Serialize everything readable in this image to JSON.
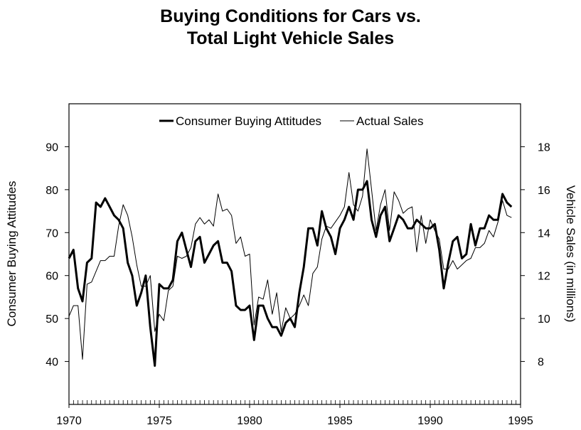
{
  "chart_data": {
    "type": "line",
    "title_line1": "Buying Conditions for Cars vs.",
    "title_line2": "Total Light Vehicle Sales",
    "xlabel": "",
    "ylabel_left": "Consumer Buying Attitudes",
    "ylabel_right": "Vehicle Sales (in millions)",
    "xlim": [
      1970,
      1995
    ],
    "ylim_left": [
      30,
      100
    ],
    "ylim_right": [
      6,
      20
    ],
    "x_ticks": [
      1970,
      1975,
      1980,
      1985,
      1990,
      1995
    ],
    "y_ticks_left": [
      40,
      50,
      60,
      70,
      80,
      90
    ],
    "y_ticks_right": [
      8,
      10,
      12,
      14,
      16,
      18
    ],
    "legend_position": "top-center",
    "grid": false,
    "series": [
      {
        "name": "Consumer Buying Attitudes",
        "axis": "left",
        "style": "thick",
        "points": [
          [
            1970.0,
            64
          ],
          [
            1970.25,
            66
          ],
          [
            1970.5,
            57
          ],
          [
            1970.75,
            54
          ],
          [
            1971.0,
            63
          ],
          [
            1971.25,
            64
          ],
          [
            1971.5,
            77
          ],
          [
            1971.75,
            76
          ],
          [
            1972.0,
            78
          ],
          [
            1972.25,
            76
          ],
          [
            1972.5,
            74
          ],
          [
            1972.75,
            73
          ],
          [
            1973.0,
            71
          ],
          [
            1973.25,
            63
          ],
          [
            1973.5,
            60
          ],
          [
            1973.75,
            53
          ],
          [
            1974.0,
            56
          ],
          [
            1974.25,
            60
          ],
          [
            1974.5,
            48
          ],
          [
            1974.75,
            39
          ],
          [
            1975.0,
            58
          ],
          [
            1975.25,
            57
          ],
          [
            1975.5,
            57
          ],
          [
            1975.75,
            59
          ],
          [
            1976.0,
            68
          ],
          [
            1976.25,
            70
          ],
          [
            1976.5,
            66
          ],
          [
            1976.75,
            62
          ],
          [
            1977.0,
            68
          ],
          [
            1977.25,
            69
          ],
          [
            1977.5,
            63
          ],
          [
            1977.75,
            65
          ],
          [
            1978.0,
            67
          ],
          [
            1978.25,
            68
          ],
          [
            1978.5,
            63
          ],
          [
            1978.75,
            63
          ],
          [
            1979.0,
            61
          ],
          [
            1979.25,
            53
          ],
          [
            1979.5,
            52
          ],
          [
            1979.75,
            52
          ],
          [
            1980.0,
            53
          ],
          [
            1980.25,
            45
          ],
          [
            1980.5,
            53
          ],
          [
            1980.75,
            53
          ],
          [
            1981.0,
            50
          ],
          [
            1981.25,
            48
          ],
          [
            1981.5,
            48
          ],
          [
            1981.75,
            46
          ],
          [
            1982.0,
            49
          ],
          [
            1982.25,
            50
          ],
          [
            1982.5,
            48
          ],
          [
            1982.75,
            56
          ],
          [
            1983.0,
            62
          ],
          [
            1983.25,
            71
          ],
          [
            1983.5,
            71
          ],
          [
            1983.75,
            67
          ],
          [
            1984.0,
            75
          ],
          [
            1984.25,
            71
          ],
          [
            1984.5,
            69
          ],
          [
            1984.75,
            65
          ],
          [
            1985.0,
            71
          ],
          [
            1985.25,
            73
          ],
          [
            1985.5,
            76
          ],
          [
            1985.75,
            73
          ],
          [
            1986.0,
            80
          ],
          [
            1986.25,
            80
          ],
          [
            1986.5,
            82
          ],
          [
            1986.75,
            73
          ],
          [
            1987.0,
            69
          ],
          [
            1987.25,
            74
          ],
          [
            1987.5,
            76
          ],
          [
            1987.75,
            68
          ],
          [
            1988.0,
            71
          ],
          [
            1988.25,
            74
          ],
          [
            1988.5,
            73
          ],
          [
            1988.75,
            71
          ],
          [
            1989.0,
            71
          ],
          [
            1989.25,
            73
          ],
          [
            1989.5,
            72
          ],
          [
            1989.75,
            71
          ],
          [
            1990.0,
            71
          ],
          [
            1990.25,
            72
          ],
          [
            1990.5,
            66
          ],
          [
            1990.75,
            57
          ],
          [
            1991.0,
            63
          ],
          [
            1991.25,
            68
          ],
          [
            1991.5,
            69
          ],
          [
            1991.75,
            64
          ],
          [
            1992.0,
            65
          ],
          [
            1992.25,
            72
          ],
          [
            1992.5,
            67
          ],
          [
            1992.75,
            71
          ],
          [
            1993.0,
            71
          ],
          [
            1993.25,
            74
          ],
          [
            1993.5,
            73
          ],
          [
            1993.75,
            73
          ],
          [
            1994.0,
            79
          ],
          [
            1994.25,
            77
          ],
          [
            1994.5,
            76
          ]
        ]
      },
      {
        "name": "Actual Sales",
        "axis": "right",
        "style": "thin",
        "points": [
          [
            1970.0,
            10.1
          ],
          [
            1970.25,
            10.6
          ],
          [
            1970.5,
            10.6
          ],
          [
            1970.75,
            8.1
          ],
          [
            1971.0,
            11.6
          ],
          [
            1971.25,
            11.7
          ],
          [
            1971.5,
            12.2
          ],
          [
            1971.75,
            12.7
          ],
          [
            1972.0,
            12.7
          ],
          [
            1972.25,
            12.9
          ],
          [
            1972.5,
            12.9
          ],
          [
            1972.75,
            14.3
          ],
          [
            1973.0,
            15.3
          ],
          [
            1973.25,
            14.8
          ],
          [
            1973.5,
            13.8
          ],
          [
            1973.75,
            12.5
          ],
          [
            1974.0,
            11.5
          ],
          [
            1974.25,
            11.5
          ],
          [
            1974.5,
            12.0
          ],
          [
            1974.75,
            9.4
          ],
          [
            1975.0,
            10.2
          ],
          [
            1975.25,
            9.9
          ],
          [
            1975.5,
            11.3
          ],
          [
            1975.75,
            11.5
          ],
          [
            1976.0,
            12.9
          ],
          [
            1976.25,
            12.8
          ],
          [
            1976.5,
            12.9
          ],
          [
            1976.75,
            13.3
          ],
          [
            1977.0,
            14.4
          ],
          [
            1977.25,
            14.7
          ],
          [
            1977.5,
            14.4
          ],
          [
            1977.75,
            14.6
          ],
          [
            1978.0,
            14.3
          ],
          [
            1978.25,
            15.8
          ],
          [
            1978.5,
            15.0
          ],
          [
            1978.75,
            15.1
          ],
          [
            1979.0,
            14.8
          ],
          [
            1979.25,
            13.5
          ],
          [
            1979.5,
            13.8
          ],
          [
            1979.75,
            12.9
          ],
          [
            1980.0,
            13.0
          ],
          [
            1980.25,
            9.7
          ],
          [
            1980.5,
            11.0
          ],
          [
            1980.75,
            10.9
          ],
          [
            1981.0,
            11.8
          ],
          [
            1981.25,
            10.2
          ],
          [
            1981.5,
            11.2
          ],
          [
            1981.75,
            9.4
          ],
          [
            1982.0,
            10.5
          ],
          [
            1982.25,
            10.0
          ],
          [
            1982.5,
            10.2
          ],
          [
            1982.75,
            10.6
          ],
          [
            1983.0,
            11.1
          ],
          [
            1983.25,
            10.6
          ],
          [
            1983.5,
            12.1
          ],
          [
            1983.75,
            12.4
          ],
          [
            1984.0,
            13.7
          ],
          [
            1984.25,
            14.3
          ],
          [
            1984.5,
            14.2
          ],
          [
            1984.75,
            14.5
          ],
          [
            1985.0,
            14.8
          ],
          [
            1985.25,
            15.2
          ],
          [
            1985.5,
            16.8
          ],
          [
            1985.75,
            15.3
          ],
          [
            1986.0,
            15.0
          ],
          [
            1986.25,
            15.7
          ],
          [
            1986.5,
            17.9
          ],
          [
            1986.75,
            16.0
          ],
          [
            1987.0,
            14.1
          ],
          [
            1987.25,
            15.3
          ],
          [
            1987.5,
            16.0
          ],
          [
            1987.75,
            14.1
          ],
          [
            1988.0,
            15.9
          ],
          [
            1988.25,
            15.5
          ],
          [
            1988.5,
            14.9
          ],
          [
            1988.75,
            15.1
          ],
          [
            1989.0,
            15.2
          ],
          [
            1989.25,
            13.1
          ],
          [
            1989.5,
            14.8
          ],
          [
            1989.75,
            13.5
          ],
          [
            1990.0,
            14.6
          ],
          [
            1990.25,
            14.1
          ],
          [
            1990.5,
            13.7
          ],
          [
            1990.75,
            12.3
          ],
          [
            1991.0,
            12.3
          ],
          [
            1991.25,
            12.7
          ],
          [
            1991.5,
            12.3
          ],
          [
            1991.75,
            12.5
          ],
          [
            1992.0,
            12.7
          ],
          [
            1992.25,
            12.8
          ],
          [
            1992.5,
            13.3
          ],
          [
            1992.75,
            13.3
          ],
          [
            1993.0,
            13.5
          ],
          [
            1993.25,
            14.1
          ],
          [
            1993.5,
            13.8
          ],
          [
            1993.75,
            14.5
          ],
          [
            1994.0,
            15.5
          ],
          [
            1994.25,
            14.8
          ],
          [
            1994.5,
            14.7
          ]
        ]
      }
    ]
  }
}
